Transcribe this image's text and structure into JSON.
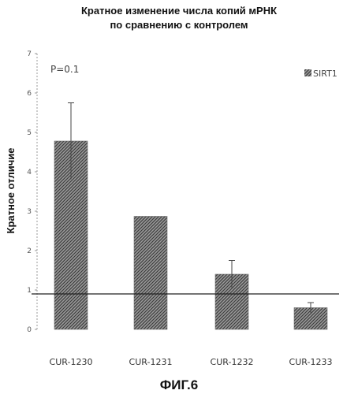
{
  "chart_data": {
    "type": "bar",
    "title_lines": [
      "Кратное изменение числа копий мРНК",
      "по сравнению с контролем"
    ],
    "xlabel": "",
    "ylabel": "Кратное отличие",
    "ylim": [
      0,
      7
    ],
    "yticks": [
      "0",
      "1",
      "2",
      "3",
      "4",
      "5",
      "6",
      "7"
    ],
    "categories": [
      "CUR-1230",
      "CUR-1231",
      "CUR-1232",
      "CUR-1233"
    ],
    "series": [
      {
        "name": "SIRT1",
        "values": [
          4.78,
          2.87,
          1.4,
          0.55
        ],
        "error": [
          0.97,
          0,
          0.35,
          0.13
        ]
      }
    ],
    "reference_line": 0.9,
    "annotation": "P=0.1",
    "legend_position": "top-right",
    "grid": false,
    "bar_pattern_color": "#555555",
    "figure_label": "ФИГ.6"
  }
}
